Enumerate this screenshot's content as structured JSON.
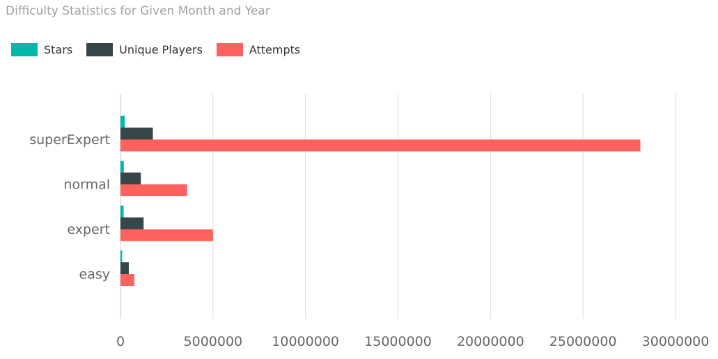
{
  "chart_data": {
    "type": "bar",
    "orientation": "horizontal",
    "title": "Difficulty Statistics for Given Month and Year",
    "categories": [
      "superExpert",
      "normal",
      "expert",
      "easy"
    ],
    "series": [
      {
        "name": "Stars",
        "color": "#01B8AA",
        "values": [
          230000,
          180000,
          170000,
          90000
        ]
      },
      {
        "name": "Unique Players",
        "color": "#374649",
        "values": [
          1750000,
          1100000,
          1250000,
          450000
        ]
      },
      {
        "name": "Attempts",
        "color": "#FD625E",
        "values": [
          28100000,
          3600000,
          5000000,
          750000
        ]
      }
    ],
    "xlim": [
      0,
      30000000
    ],
    "xticks": [
      0,
      5000000,
      10000000,
      15000000,
      20000000,
      25000000,
      30000000
    ],
    "xtick_labels": [
      "0",
      "5000000",
      "10000000",
      "15000000",
      "20000000",
      "25000000",
      "30000000"
    ],
    "grid": true,
    "legend_position": "top-left",
    "xlabel": "",
    "ylabel": ""
  }
}
